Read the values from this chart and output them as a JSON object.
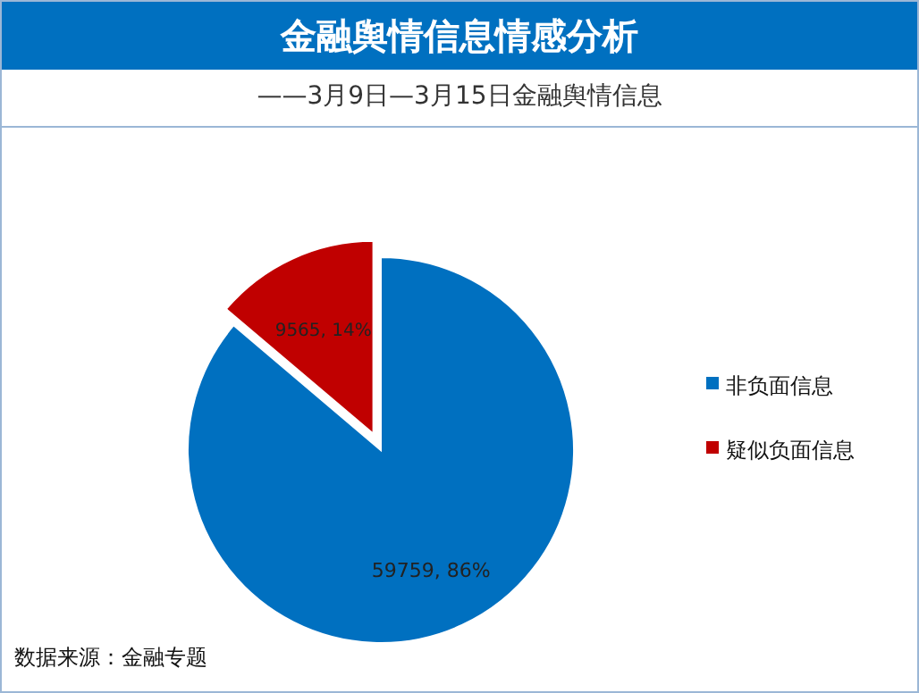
{
  "chart_data": {
    "type": "pie",
    "title": "金融舆情信息情感分析",
    "subtitle": "——3月9日—3月15日金融舆情信息",
    "categories": [
      "非负面信息",
      "疑似负面信息"
    ],
    "values": [
      59759,
      9565
    ],
    "colors": [
      "#0070c0",
      "#c00000"
    ],
    "value_labels": [
      "59759, 86%",
      "9565, 14%"
    ],
    "legend": "right",
    "annotations": [
      "数据来源：金融专题"
    ]
  }
}
